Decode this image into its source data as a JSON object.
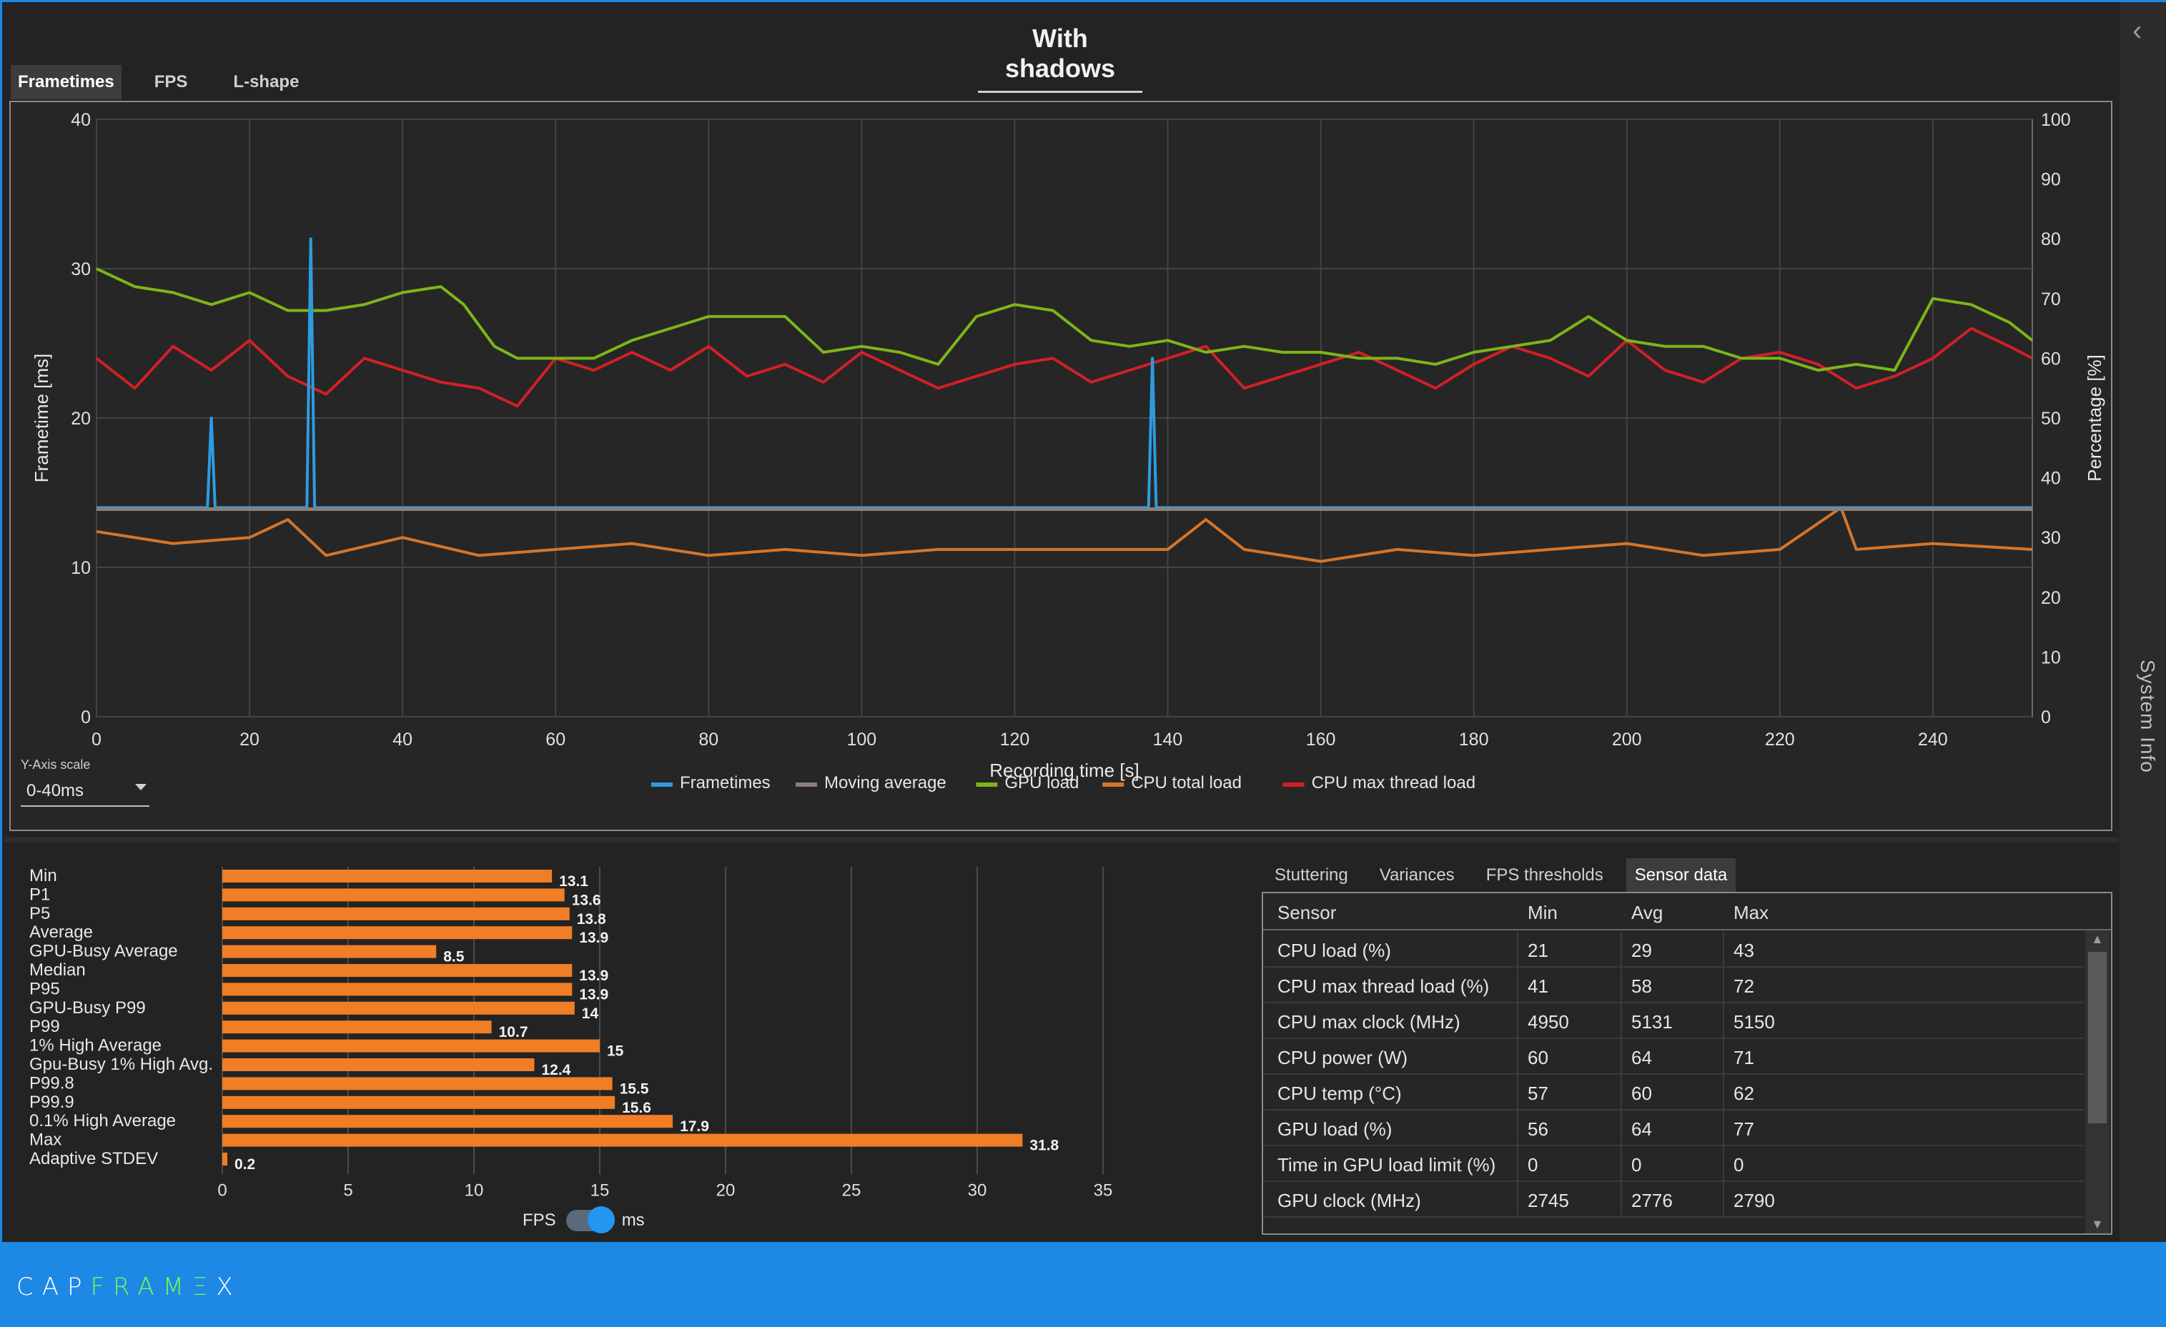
{
  "title": "With shadows",
  "chart_tabs": [
    "Frametimes",
    "FPS",
    "L-shape"
  ],
  "sidebar_label": "System Info",
  "y_axis_scale": {
    "label": "Y-Axis scale",
    "value": "0-40ms"
  },
  "colors": {
    "frametimes": "#2e9be0",
    "moving_average": "#8c7e7a",
    "gpu_load": "#7cb518",
    "cpu_total_load": "#d4752a",
    "cpu_max_thread_load": "#d21f26",
    "bar": "#f07e26",
    "accent": "#1e88e5"
  },
  "chart_data": [
    {
      "type": "line",
      "xlabel": "Recording time [s]",
      "ylabel": "Frametime [ms]",
      "y2label": "Percentage [%]",
      "xlim": [
        0,
        253
      ],
      "ylim": [
        0,
        40
      ],
      "y2lim": [
        0,
        100
      ],
      "x_ticks": [
        0,
        20,
        40,
        60,
        80,
        100,
        120,
        140,
        160,
        180,
        200,
        220,
        240
      ],
      "y_ticks": [
        0,
        10,
        20,
        30,
        40
      ],
      "y2_ticks": [
        0,
        10,
        20,
        30,
        40,
        50,
        60,
        70,
        80,
        90,
        100
      ],
      "grid": true,
      "legend": "bottom-center",
      "series": [
        {
          "name": "Frametimes",
          "axis": "left",
          "x": [
            0,
            10,
            14.5,
            15,
            15.5,
            20,
            27.5,
            28,
            28.5,
            40,
            60,
            80,
            100,
            120,
            137.5,
            138,
            138.5,
            160,
            180,
            200,
            220,
            240,
            253
          ],
          "y": [
            14,
            14,
            14,
            20,
            14,
            14,
            14,
            32,
            14,
            14,
            14,
            14,
            14,
            14,
            14,
            24,
            14,
            14,
            14,
            14,
            14,
            14,
            14
          ]
        },
        {
          "name": "Moving average",
          "axis": "left",
          "x": [
            0,
            253
          ],
          "y": [
            13.9,
            13.9
          ]
        },
        {
          "name": "GPU load",
          "axis": "right",
          "x": [
            0,
            5,
            10,
            15,
            20,
            25,
            30,
            35,
            40,
            45,
            48,
            52,
            55,
            60,
            65,
            70,
            75,
            80,
            85,
            90,
            95,
            100,
            105,
            110,
            115,
            120,
            125,
            130,
            135,
            140,
            145,
            150,
            155,
            160,
            165,
            170,
            175,
            180,
            185,
            190,
            195,
            200,
            205,
            210,
            215,
            220,
            225,
            230,
            235,
            240,
            245,
            250,
            253
          ],
          "y": [
            75,
            72,
            71,
            69,
            71,
            68,
            68,
            69,
            71,
            72,
            69,
            62,
            60,
            60,
            60,
            63,
            65,
            67,
            67,
            67,
            61,
            62,
            61,
            59,
            67,
            69,
            68,
            63,
            62,
            63,
            61,
            62,
            61,
            61,
            60,
            60,
            59,
            61,
            62,
            63,
            67,
            63,
            62,
            62,
            60,
            60,
            58,
            59,
            58,
            70,
            69,
            66,
            63
          ]
        },
        {
          "name": "CPU total load",
          "axis": "right",
          "x": [
            0,
            10,
            20,
            25,
            30,
            40,
            50,
            60,
            70,
            80,
            90,
            100,
            110,
            120,
            130,
            140,
            145,
            150,
            160,
            170,
            180,
            190,
            200,
            210,
            220,
            228,
            230,
            240,
            253
          ],
          "y": [
            31,
            29,
            30,
            33,
            27,
            30,
            27,
            28,
            29,
            27,
            28,
            27,
            28,
            28,
            28,
            28,
            33,
            28,
            26,
            28,
            27,
            28,
            29,
            27,
            28,
            35,
            28,
            29,
            28
          ]
        },
        {
          "name": "CPU max thread load",
          "axis": "right",
          "x": [
            0,
            5,
            10,
            15,
            20,
            25,
            30,
            35,
            40,
            45,
            50,
            55,
            60,
            65,
            70,
            75,
            80,
            85,
            90,
            95,
            100,
            105,
            110,
            115,
            120,
            125,
            130,
            135,
            140,
            145,
            150,
            155,
            160,
            165,
            170,
            175,
            180,
            185,
            190,
            195,
            200,
            205,
            210,
            215,
            220,
            225,
            230,
            235,
            240,
            245,
            250,
            253
          ],
          "y": [
            60,
            55,
            62,
            58,
            63,
            57,
            54,
            60,
            58,
            56,
            55,
            52,
            60,
            58,
            61,
            58,
            62,
            57,
            59,
            56,
            61,
            58,
            55,
            57,
            59,
            60,
            56,
            58,
            60,
            62,
            55,
            57,
            59,
            61,
            58,
            55,
            59,
            62,
            60,
            57,
            63,
            58,
            56,
            60,
            61,
            59,
            55,
            57,
            60,
            65,
            62,
            60
          ]
        }
      ]
    },
    {
      "type": "bar",
      "orientation": "horizontal",
      "categories": [
        "Min",
        "P1",
        "P5",
        "Average",
        "GPU-Busy Average",
        "Median",
        "P95",
        "GPU-Busy P99",
        "P99",
        "1% High Average",
        "Gpu-Busy 1% High Avg.",
        "P99.8",
        "P99.9",
        "0.1% High Average",
        "Max",
        "Adaptive STDEV"
      ],
      "values": [
        13.1,
        13.6,
        13.8,
        13.9,
        8.5,
        13.9,
        13.9,
        14,
        10.7,
        15,
        12.4,
        15.5,
        15.6,
        17.9,
        31.8,
        0.2
      ],
      "xlim": [
        0,
        35
      ],
      "x_ticks": [
        0,
        5,
        10,
        15,
        20,
        25,
        30,
        35
      ],
      "grid": true
    }
  ],
  "unit_toggle": {
    "left": "FPS",
    "right": "ms",
    "state": "ms"
  },
  "sensor_tabs": [
    "Stuttering",
    "Variances",
    "FPS thresholds",
    "Sensor data"
  ],
  "sensor_table": {
    "headers": [
      "Sensor",
      "Min",
      "Avg",
      "Max"
    ],
    "rows": [
      [
        "CPU load (%)",
        "21",
        "29",
        "43"
      ],
      [
        "CPU max thread load (%)",
        "41",
        "58",
        "72"
      ],
      [
        "CPU max clock (MHz)",
        "4950",
        "5131",
        "5150"
      ],
      [
        "CPU power (W)",
        "60",
        "64",
        "71"
      ],
      [
        "CPU temp (°C)",
        "57",
        "60",
        "62"
      ],
      [
        "GPU load (%)",
        "56",
        "64",
        "77"
      ],
      [
        "Time in GPU load limit (%)",
        "0",
        "0",
        "0"
      ],
      [
        "GPU clock (MHz)",
        "2745",
        "2776",
        "2790"
      ]
    ]
  },
  "brand": {
    "part1": "CAP",
    "part2": "FRAMΞ",
    "part3": "X"
  }
}
